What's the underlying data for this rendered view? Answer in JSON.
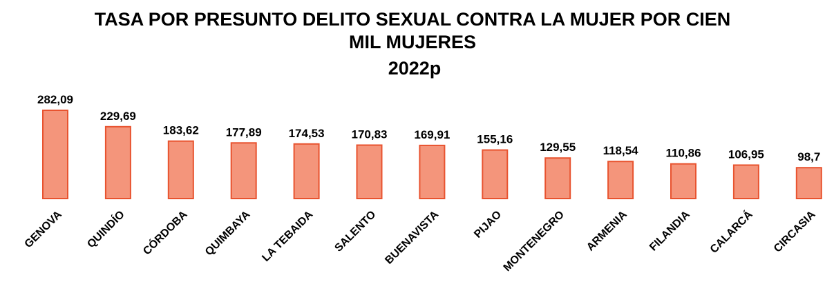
{
  "chart_data": {
    "type": "bar",
    "title": "TASA POR PRESUNTO DELITO SEXUAL CONTRA LA MUJER POR CIEN MIL MUJERES",
    "subtitle": "2022p",
    "categories": [
      "GENOVA",
      "QUINDÍO",
      "CÓRDOBA",
      "QUIMBAYA",
      "LA TEBAIDA",
      "SALENTO",
      "BUENAVISTA",
      "PIJAO",
      "MONTENEGRO",
      "ARMENIA",
      "FILANDIA",
      "CALARCÁ",
      "CIRCASIA"
    ],
    "values": [
      282.09,
      229.69,
      183.62,
      177.89,
      174.53,
      170.83,
      169.91,
      155.16,
      129.55,
      118.54,
      110.86,
      106.95,
      98.7
    ],
    "value_labels": [
      "282,09",
      "229,69",
      "183,62",
      "177,89",
      "174,53",
      "170,83",
      "169,91",
      "155,16",
      "129,55",
      "118,54",
      "110,86",
      "106,95",
      "98,7"
    ],
    "color": "#f4957b"
  }
}
